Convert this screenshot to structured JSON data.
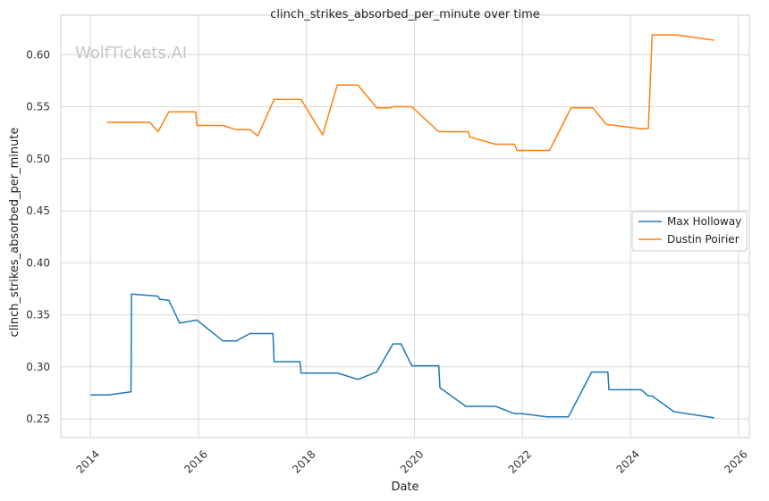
{
  "watermark": "WolfTickets.AI",
  "chart_data": {
    "type": "line",
    "title": "clinch_strikes_absorbed_per_minute over time",
    "xlabel": "Date",
    "ylabel": "clinch_strikes_absorbed_per_minute",
    "xlim": [
      2013.45,
      2026.2
    ],
    "ylim": [
      0.232,
      0.638
    ],
    "x_ticks": [
      2014,
      2016,
      2018,
      2020,
      2022,
      2024,
      2026
    ],
    "y_ticks": [
      0.25,
      0.3,
      0.35,
      0.4,
      0.45,
      0.5,
      0.55,
      0.6
    ],
    "y_tick_labels": [
      "0.25",
      "0.30",
      "0.35",
      "0.40",
      "0.45",
      "0.50",
      "0.55",
      "0.60"
    ],
    "grid": true,
    "legend_position": "center-right",
    "series": [
      {
        "name": "Max Holloway",
        "color": "#1f77b4",
        "x": [
          2014.0,
          2014.33,
          2014.75,
          2014.76,
          2015.25,
          2015.28,
          2015.45,
          2015.65,
          2015.97,
          2016.45,
          2016.7,
          2016.95,
          2017.38,
          2017.4,
          2017.88,
          2017.9,
          2018.58,
          2018.95,
          2019.3,
          2019.6,
          2019.75,
          2019.95,
          2020.45,
          2020.47,
          2020.95,
          2021.5,
          2021.85,
          2022.0,
          2022.45,
          2022.85,
          2023.28,
          2023.58,
          2023.6,
          2024.2,
          2024.33,
          2024.4,
          2024.8,
          2025.55
        ],
        "y": [
          0.273,
          0.273,
          0.276,
          0.37,
          0.368,
          0.365,
          0.364,
          0.342,
          0.345,
          0.325,
          0.325,
          0.332,
          0.332,
          0.305,
          0.305,
          0.294,
          0.294,
          0.288,
          0.295,
          0.322,
          0.322,
          0.301,
          0.301,
          0.28,
          0.262,
          0.262,
          0.255,
          0.255,
          0.252,
          0.252,
          0.295,
          0.295,
          0.278,
          0.278,
          0.272,
          0.272,
          0.257,
          0.251
        ]
      },
      {
        "name": "Dustin Poirier",
        "color": "#ff7f0e",
        "x": [
          2014.3,
          2015.1,
          2015.25,
          2015.45,
          2015.95,
          2015.97,
          2016.45,
          2016.7,
          2016.95,
          2017.1,
          2017.4,
          2017.9,
          2018.3,
          2018.57,
          2018.95,
          2019.3,
          2019.55,
          2019.6,
          2019.95,
          2020.45,
          2021.0,
          2021.02,
          2021.5,
          2021.85,
          2021.9,
          2022.5,
          2022.9,
          2023.3,
          2023.55,
          2024.18,
          2024.2,
          2024.33,
          2024.4,
          2024.85,
          2025.55
        ],
        "y": [
          0.535,
          0.535,
          0.526,
          0.545,
          0.545,
          0.532,
          0.532,
          0.528,
          0.528,
          0.522,
          0.557,
          0.557,
          0.523,
          0.571,
          0.571,
          0.549,
          0.549,
          0.55,
          0.55,
          0.526,
          0.526,
          0.521,
          0.514,
          0.514,
          0.508,
          0.508,
          0.549,
          0.549,
          0.533,
          0.529,
          0.529,
          0.529,
          0.619,
          0.619,
          0.614
        ]
      }
    ]
  }
}
